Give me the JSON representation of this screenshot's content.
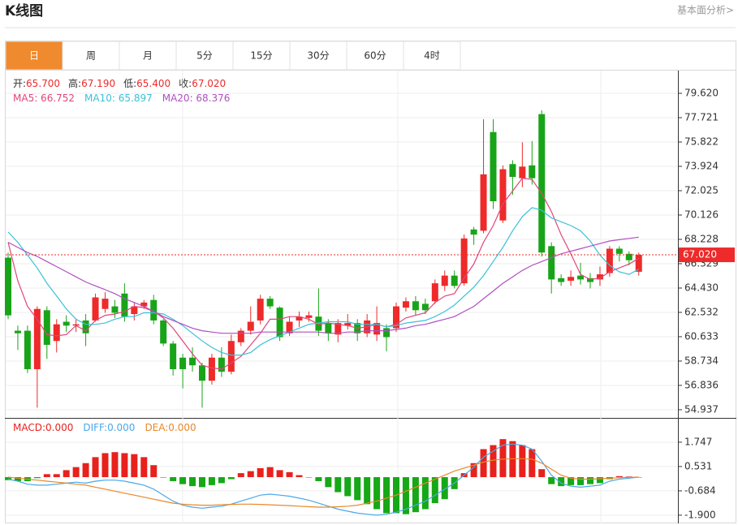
{
  "header": {
    "title": "K线图",
    "link": "基本面分析>"
  },
  "tabs": [
    "日",
    "周",
    "月",
    "5分",
    "15分",
    "30分",
    "60分",
    "4时"
  ],
  "active_tab": 0,
  "info": [
    {
      "label": "开:",
      "value": "65.700"
    },
    {
      "label": "高:",
      "value": "67.190"
    },
    {
      "label": "低:",
      "value": "65.400"
    },
    {
      "label": "收:",
      "value": "67.020"
    }
  ],
  "chart_data": [
    {
      "type": "candlestick",
      "up_color": "#ee2a2a",
      "down_color": "#18a418",
      "ylim": [
        54.3,
        81.33
      ],
      "yticks": [
        {
          "value": 79.62,
          "label": "79.620"
        },
        77.721,
        75.822,
        73.924,
        72.025,
        70.126,
        68.228,
        66.329,
        {
          "value": 64.43,
          "label": "64.430"
        },
        62.532,
        60.633,
        58.734,
        56.836,
        54.937
      ],
      "grid": true,
      "price_line": {
        "value": 67.02,
        "label": "67.020",
        "color": "#ee2a2a"
      },
      "open": [
        66.8,
        61.1,
        61.1,
        58.1,
        62.7,
        60.3,
        61.8,
        61.5,
        61.9,
        61.9,
        62.8,
        63.0,
        64.0,
        62.4,
        63.0,
        63.5,
        61.9,
        60.1,
        59.0,
        59.0,
        58.4,
        57.2,
        59.0,
        57.9,
        60.2,
        61.1,
        61.9,
        63.6,
        62.9,
        60.9,
        61.9,
        62.1,
        62.2,
        61.7,
        60.8,
        61.5,
        61.7,
        60.9,
        60.8,
        61.3,
        61.3,
        62.9,
        63.4,
        63.2,
        63.4,
        64.6,
        65.4,
        64.8,
        69.0,
        68.9,
        76.6,
        69.7,
        74.1,
        73.0,
        74.0,
        78.0,
        67.7,
        65.2,
        65.0,
        65.4,
        65.2,
        65.1,
        65.6,
        67.5,
        67.1,
        65.7
      ],
      "high": [
        67.2,
        61.5,
        61.5,
        63.0,
        63.0,
        62.0,
        62.3,
        62.0,
        62.4,
        64.0,
        64.1,
        63.5,
        64.8,
        63.3,
        63.5,
        63.9,
        62.0,
        60.3,
        59.3,
        59.8,
        58.6,
        59.3,
        59.8,
        60.8,
        61.3,
        63.0,
        63.9,
        63.8,
        63.0,
        62.2,
        62.6,
        62.6,
        64.4,
        62.0,
        62.0,
        62.4,
        62.0,
        62.4,
        63.0,
        61.6,
        63.3,
        63.7,
        63.8,
        63.6,
        65.1,
        65.8,
        65.8,
        68.6,
        69.2,
        77.6,
        77.6,
        74.0,
        74.4,
        75.8,
        75.9,
        78.3,
        68.0,
        65.5,
        65.8,
        66.4,
        65.6,
        66.1,
        67.7,
        67.7,
        67.3,
        67.19
      ],
      "low": [
        62.0,
        59.6,
        57.8,
        55.1,
        58.9,
        59.4,
        61.0,
        61.0,
        59.9,
        61.8,
        62.5,
        62.1,
        61.8,
        61.9,
        62.8,
        61.6,
        59.9,
        57.6,
        56.6,
        57.9,
        55.1,
        56.9,
        57.5,
        57.7,
        59.9,
        60.8,
        61.6,
        62.8,
        60.3,
        60.7,
        61.4,
        61.8,
        60.7,
        60.3,
        60.2,
        61.2,
        60.3,
        60.6,
        60.3,
        59.5,
        61.0,
        62.6,
        62.3,
        62.4,
        63.2,
        64.2,
        64.4,
        64.6,
        67.8,
        68.7,
        70.6,
        69.5,
        71.7,
        72.3,
        72.5,
        66.9,
        64.0,
        64.6,
        64.6,
        64.7,
        64.4,
        64.6,
        65.3,
        66.5,
        66.2,
        65.4
      ],
      "close": [
        62.3,
        60.9,
        58.1,
        62.8,
        60.0,
        61.6,
        61.5,
        61.6,
        60.9,
        63.7,
        63.6,
        62.5,
        62.2,
        63.0,
        63.3,
        61.9,
        60.1,
        58.1,
        58.1,
        58.4,
        57.2,
        59.0,
        57.9,
        60.3,
        61.1,
        61.8,
        63.6,
        63.0,
        60.6,
        61.8,
        62.2,
        62.3,
        61.1,
        60.9,
        61.7,
        61.7,
        60.9,
        61.9,
        61.7,
        60.6,
        63.0,
        63.4,
        62.7,
        62.7,
        64.8,
        65.4,
        64.6,
        68.3,
        68.6,
        73.3,
        71.2,
        73.7,
        73.1,
        73.9,
        73.0,
        67.2,
        65.1,
        64.9,
        65.3,
        65.1,
        64.9,
        65.5,
        67.5,
        67.1,
        66.6,
        67.02
      ],
      "series": [
        {
          "name": "MA5: 66.752",
          "color": "#e0457b",
          "values": [
            68.0,
            65.0,
            63.0,
            62.0,
            60.8,
            60.7,
            60.8,
            61.5,
            61.1,
            61.9,
            62.3,
            62.4,
            62.6,
            63.0,
            62.9,
            62.6,
            62.1,
            61.3,
            60.3,
            59.3,
            58.4,
            58.2,
            58.1,
            58.6,
            59.1,
            60.0,
            60.9,
            62.0,
            62.0,
            62.2,
            62.2,
            62.0,
            61.6,
            61.7,
            61.6,
            61.5,
            61.3,
            61.4,
            61.6,
            61.4,
            61.6,
            62.1,
            62.3,
            62.5,
            63.3,
            63.8,
            64.0,
            65.2,
            66.3,
            68.0,
            69.3,
            71.0,
            72.0,
            73.0,
            72.9,
            71.8,
            70.4,
            68.6,
            67.1,
            65.5,
            65.1,
            65.2,
            65.7,
            66.0,
            66.3,
            66.75
          ]
        },
        {
          "name": "MA10: 65.897",
          "color": "#3cc0d8",
          "values": [
            68.8,
            68.0,
            67.0,
            66.0,
            64.8,
            63.8,
            62.8,
            62.0,
            61.6,
            61.6,
            61.7,
            62.0,
            62.2,
            62.2,
            62.5,
            62.5,
            62.4,
            62.0,
            61.5,
            60.9,
            60.3,
            59.8,
            59.4,
            59.2,
            59.2,
            59.4,
            60.0,
            60.4,
            60.7,
            61.0,
            61.3,
            61.6,
            61.7,
            61.8,
            61.8,
            61.8,
            61.6,
            61.6,
            61.6,
            61.4,
            61.5,
            61.7,
            61.8,
            61.9,
            62.2,
            62.6,
            63.1,
            63.8,
            64.5,
            65.4,
            66.5,
            67.6,
            68.9,
            70.0,
            70.7,
            70.5,
            69.9,
            69.6,
            69.3,
            68.9,
            68.1,
            67.0,
            66.2,
            65.7,
            65.5,
            65.9
          ]
        },
        {
          "name": "MA20: 68.376",
          "color": "#b04fc0",
          "values": [
            68.0,
            67.6,
            67.2,
            66.9,
            66.5,
            66.1,
            65.7,
            65.3,
            64.9,
            64.6,
            64.3,
            64.0,
            63.6,
            63.3,
            63.0,
            62.6,
            62.2,
            61.9,
            61.6,
            61.3,
            61.1,
            61.0,
            60.9,
            60.9,
            60.9,
            60.9,
            61.0,
            61.0,
            61.0,
            61.0,
            61.0,
            61.0,
            61.0,
            60.9,
            60.9,
            61.0,
            61.0,
            61.1,
            61.1,
            61.1,
            61.2,
            61.3,
            61.5,
            61.6,
            61.8,
            62.0,
            62.2,
            62.6,
            63.0,
            63.6,
            64.2,
            64.8,
            65.3,
            65.8,
            66.2,
            66.5,
            66.8,
            67.1,
            67.3,
            67.5,
            67.7,
            67.9,
            68.1,
            68.2,
            68.3,
            68.4
          ]
        }
      ]
    },
    {
      "type": "macd",
      "ylim": [
        -2.31,
        2.88
      ],
      "yticks": [
        1.747,
        0.531,
        -0.684,
        {
          "value": -1.9,
          "label": "-1.900"
        }
      ],
      "grid": true,
      "histogram": {
        "name": "MACD:0.000",
        "up_color": "#e8211d",
        "down_color": "#16a816",
        "values": [
          -0.15,
          -0.2,
          -0.2,
          -0.05,
          0.15,
          0.15,
          0.35,
          0.5,
          0.7,
          1.0,
          1.2,
          1.25,
          1.2,
          1.15,
          1.0,
          0.6,
          0.0,
          -0.2,
          -0.35,
          -0.45,
          -0.5,
          -0.4,
          -0.3,
          -0.1,
          0.2,
          0.3,
          0.45,
          0.5,
          0.35,
          0.25,
          0.1,
          -0.02,
          -0.2,
          -0.5,
          -0.75,
          -0.95,
          -1.15,
          -1.35,
          -1.6,
          -1.8,
          -1.8,
          -1.85,
          -1.75,
          -1.6,
          -1.3,
          -1.1,
          -0.6,
          0.2,
          0.7,
          1.4,
          1.6,
          1.9,
          1.8,
          1.6,
          1.4,
          0.4,
          -0.35,
          -0.45,
          -0.4,
          -0.4,
          -0.35,
          -0.3,
          -0.1,
          0.05,
          0.03,
          0.0
        ]
      },
      "series": [
        {
          "name": "DIFF:0.000",
          "color": "#4aa8e8",
          "values": [
            -0.1,
            -0.2,
            -0.35,
            -0.4,
            -0.4,
            -0.35,
            -0.3,
            -0.25,
            -0.3,
            -0.2,
            -0.15,
            -0.15,
            -0.2,
            -0.3,
            -0.4,
            -0.6,
            -0.9,
            -1.2,
            -1.4,
            -1.5,
            -1.55,
            -1.5,
            -1.45,
            -1.35,
            -1.2,
            -1.05,
            -0.9,
            -0.85,
            -0.9,
            -0.95,
            -1.05,
            -1.15,
            -1.3,
            -1.45,
            -1.6,
            -1.7,
            -1.8,
            -1.85,
            -1.9,
            -1.85,
            -1.75,
            -1.6,
            -1.4,
            -1.2,
            -0.9,
            -0.6,
            -0.3,
            0.1,
            0.5,
            1.0,
            1.3,
            1.6,
            1.65,
            1.6,
            1.4,
            0.8,
            0.1,
            -0.3,
            -0.45,
            -0.5,
            -0.45,
            -0.4,
            -0.2,
            -0.1,
            -0.05,
            0.0
          ]
        },
        {
          "name": "DEA:0.000",
          "color": "#e8882a",
          "values": [
            0.0,
            -0.05,
            -0.1,
            -0.15,
            -0.2,
            -0.25,
            -0.3,
            -0.35,
            -0.4,
            -0.5,
            -0.6,
            -0.7,
            -0.8,
            -0.9,
            -1.0,
            -1.1,
            -1.2,
            -1.3,
            -1.35,
            -1.38,
            -1.4,
            -1.4,
            -1.38,
            -1.36,
            -1.35,
            -1.35,
            -1.36,
            -1.38,
            -1.4,
            -1.42,
            -1.45,
            -1.48,
            -1.5,
            -1.5,
            -1.48,
            -1.45,
            -1.4,
            -1.3,
            -1.2,
            -1.05,
            -0.9,
            -0.7,
            -0.5,
            -0.3,
            -0.1,
            0.1,
            0.3,
            0.45,
            0.6,
            0.75,
            0.85,
            0.9,
            0.92,
            0.92,
            0.9,
            0.7,
            0.4,
            0.1,
            -0.05,
            -0.1,
            -0.1,
            -0.08,
            -0.05,
            -0.03,
            -0.01,
            0.0
          ]
        }
      ]
    }
  ]
}
